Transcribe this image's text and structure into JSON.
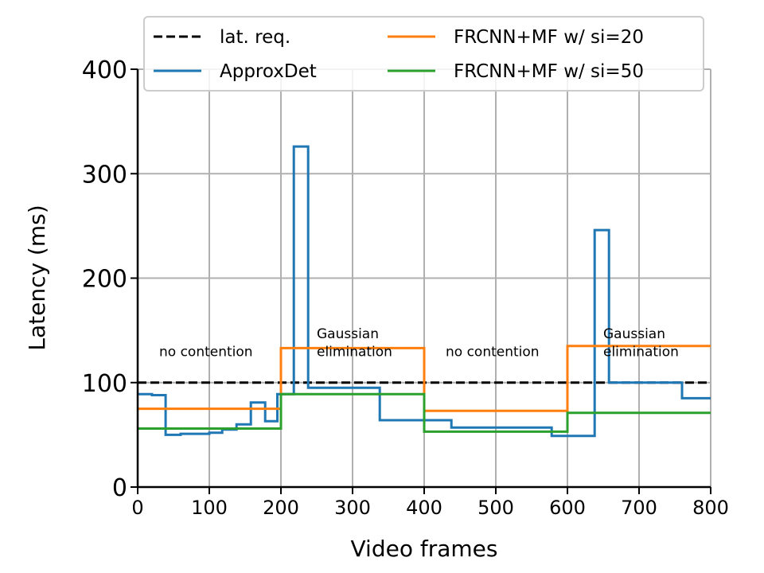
{
  "chart_data": {
    "type": "line",
    "title": "",
    "xlabel": "Video frames",
    "ylabel": "Latency (ms)",
    "xlim": [
      0,
      800
    ],
    "ylim": [
      0,
      400
    ],
    "xticks": [
      0,
      100,
      200,
      300,
      400,
      500,
      600,
      700,
      800
    ],
    "yticks": [
      0,
      100,
      200,
      300,
      400
    ],
    "xtick_labels": [
      "0",
      "100",
      "200",
      "300",
      "400",
      "500",
      "600",
      "700",
      "800"
    ],
    "ytick_labels": [
      "0",
      "100",
      "200",
      "300",
      "400"
    ],
    "grid": true,
    "legend_position": "top",
    "series": [
      {
        "name": "lat. req.",
        "color": "#000000",
        "style": "dashed",
        "step": false,
        "x": [
          0,
          800
        ],
        "y": [
          100,
          100
        ]
      },
      {
        "name": "ApproxDet",
        "color": "#1f77b4",
        "style": "solid",
        "step": true,
        "x": [
          0,
          20,
          39,
          60,
          100,
          118,
          138,
          158,
          178,
          195,
          218,
          238,
          258,
          338,
          358,
          438,
          538,
          578,
          638,
          658,
          760,
          800
        ],
        "y": [
          89,
          88,
          50,
          51,
          52,
          55,
          60,
          81,
          63,
          89,
          326,
          95,
          95,
          64,
          64,
          57,
          57,
          49,
          246,
          100,
          85,
          85
        ]
      },
      {
        "name": "FRCNN+MF w/ si=20",
        "color": "#ff7f0e",
        "style": "solid",
        "step": true,
        "x": [
          0,
          200,
          400,
          600,
          800
        ],
        "y": [
          75,
          133,
          73,
          135,
          135
        ]
      },
      {
        "name": "FRCNN+MF w/ si=50",
        "color": "#2ca02c",
        "style": "solid",
        "step": true,
        "x": [
          0,
          200,
          400,
          600,
          800
        ],
        "y": [
          56,
          89,
          53,
          71,
          71
        ]
      }
    ],
    "annotations": [
      {
        "id": "a1",
        "text": "no contention",
        "x": 30,
        "y": 130
      },
      {
        "id": "a2",
        "text": "Gaussian",
        "x": 250,
        "y": 147
      },
      {
        "id": "a3",
        "text": "elimination",
        "x": 250,
        "y": 130
      },
      {
        "id": "a4",
        "text": "no contention",
        "x": 430,
        "y": 130
      },
      {
        "id": "a5",
        "text": "Gaussian",
        "x": 650,
        "y": 147
      },
      {
        "id": "a6",
        "text": "elimination",
        "x": 650,
        "y": 130
      }
    ]
  }
}
